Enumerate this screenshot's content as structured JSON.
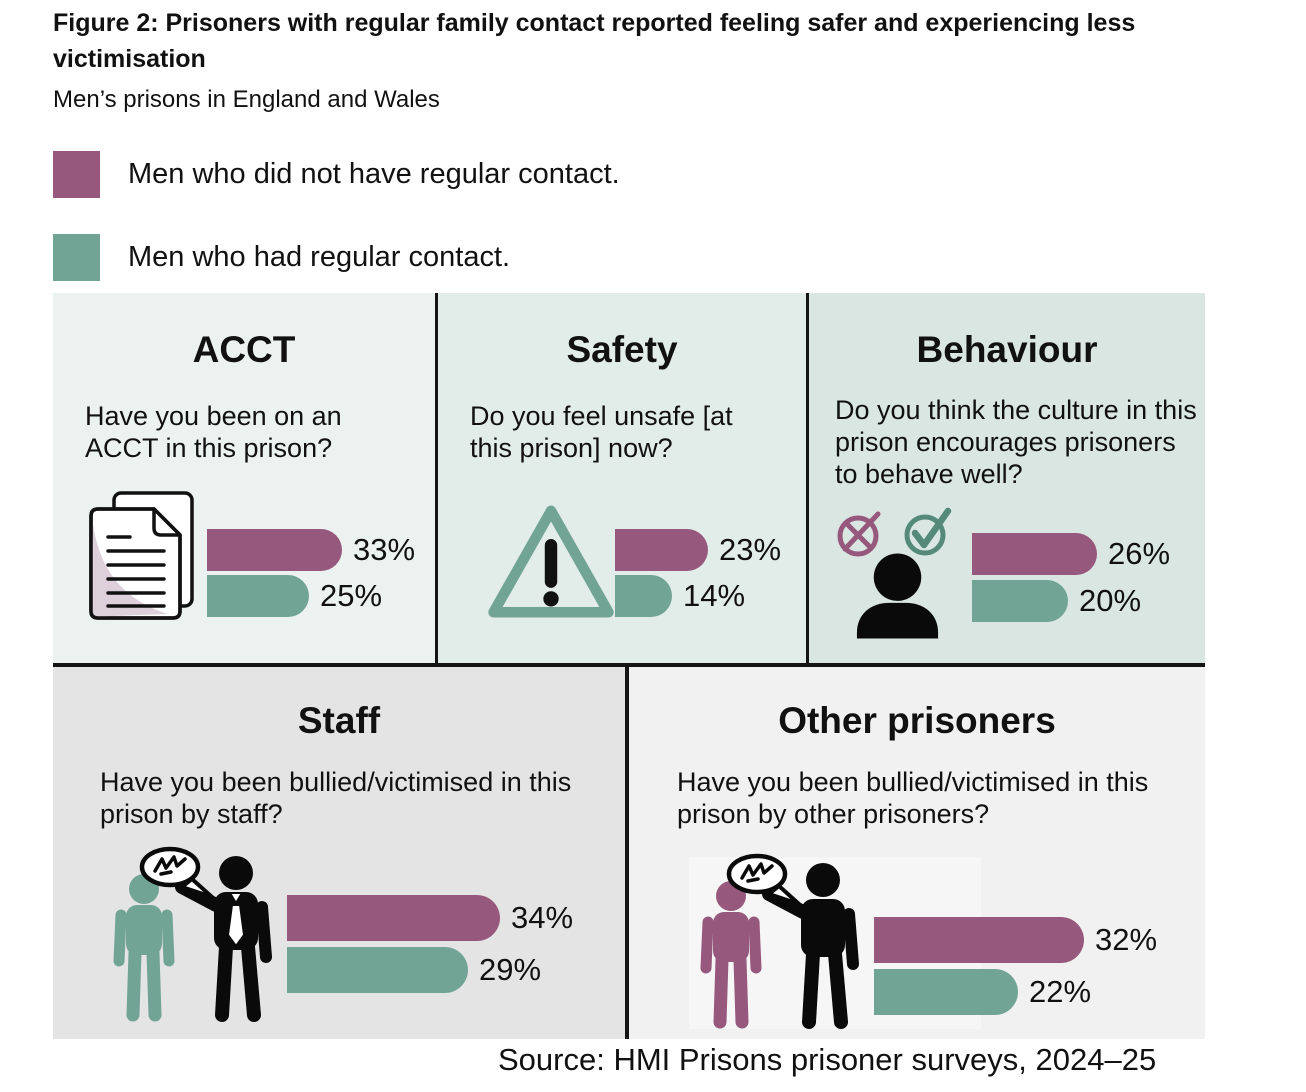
{
  "figure": {
    "title": "Figure 2: Prisoners with regular family contact reported feeling safer and experiencing less victimisation",
    "subtitle": "Men’s prisons in England and Wales",
    "source": "Source: HMI Prisons prisoner surveys, 2024–25"
  },
  "legend": [
    {
      "label": "Men who did not have regular contact.",
      "color": "#96597D"
    },
    {
      "label": "Men who had regular contact.",
      "color": "#72A496"
    }
  ],
  "colors": {
    "purple": "#96597D",
    "green": "#72A496",
    "check_green": "#55897A",
    "doc_shade": "#DDD0DA",
    "line": "#141414",
    "panel_acct_bg": "#ECF2EF",
    "panel_safety_bg": "#E2ECE8",
    "panel_behaviour_bg": "#D9E6E1",
    "panel_staff_bg": "#E4E4E4",
    "panel_other_bg": "#F1F1F1"
  },
  "chart_data": {
    "type": "bar",
    "title": "Figure 2: Prisoners with regular family contact reported feeling safer and experiencing less victimisation",
    "subtitle": "Men’s prisons in England and Wales",
    "unit": "%",
    "categories": [
      "ACCT",
      "Safety",
      "Behaviour",
      "Staff",
      "Other prisoners"
    ],
    "series": [
      {
        "name": "Men who did not have regular contact.",
        "color": "#96597D",
        "values": [
          33,
          23,
          26,
          34,
          32
        ]
      },
      {
        "name": "Men who had regular contact.",
        "color": "#72A496",
        "values": [
          25,
          14,
          20,
          29,
          22
        ]
      }
    ],
    "legend_position": "top-left",
    "grid": false,
    "source": "Source: HMI Prisons prisoner surveys, 2024–25"
  },
  "panels": [
    {
      "id": "acct",
      "title": "ACCT",
      "question": "Have you been on an ACCT in this prison?",
      "icon": "documents-icon",
      "bars": [
        {
          "series": "Men who did not have regular contact.",
          "value": 33,
          "label": "33%"
        },
        {
          "series": "Men who had regular contact.",
          "value": 25,
          "label": "25%"
        }
      ]
    },
    {
      "id": "safety",
      "title": "Safety",
      "question": "Do you feel unsafe [at this prison] now?",
      "icon": "warning-triangle-icon",
      "bars": [
        {
          "series": "Men who did not have regular contact.",
          "value": 23,
          "label": "23%"
        },
        {
          "series": "Men who had regular contact.",
          "value": 14,
          "label": "14%"
        }
      ]
    },
    {
      "id": "behaviour",
      "title": "Behaviour",
      "question": "Do you think the culture in this prison encourages prisoners to behave well?",
      "icon": "cross-circle-check-circle-person-icons",
      "bars": [
        {
          "series": "Men who did not have regular contact.",
          "value": 26,
          "label": "26%"
        },
        {
          "series": "Men who had regular contact.",
          "value": 20,
          "label": "20%"
        }
      ]
    },
    {
      "id": "staff",
      "title": "Staff",
      "question": "Have you been bullied/victimised in this prison by staff?",
      "icon": "two-people-speech-bubble-icon",
      "bars": [
        {
          "series": "Men who did not have regular contact.",
          "value": 34,
          "label": "34%"
        },
        {
          "series": "Men who had regular contact.",
          "value": 29,
          "label": "29%"
        }
      ]
    },
    {
      "id": "other-prisoners",
      "title": "Other prisoners",
      "question": "Have you been bullied/victimised in this prison by other prisoners?",
      "icon": "two-people-speech-bubble-icon",
      "bars": [
        {
          "series": "Men who did not have regular contact.",
          "value": 32,
          "label": "32%"
        },
        {
          "series": "Men who had regular contact.",
          "value": 22,
          "label": "22%"
        }
      ]
    }
  ]
}
